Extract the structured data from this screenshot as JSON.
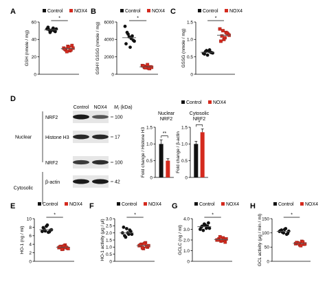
{
  "figure": {
    "colors": {
      "control": "#111111",
      "nox4": "#d42a1e",
      "axis": "#000000",
      "mean": "#555555",
      "blot": "#1a1a1a"
    },
    "legend": {
      "control": "Control",
      "nox4": "NOX4"
    }
  },
  "chart_data": [
    {
      "panel": "A",
      "type": "scatter",
      "ylabel": "GSH (nmole / mg)",
      "ylim": [
        0,
        60
      ],
      "yticks": [
        0,
        20,
        40,
        60
      ],
      "sig": "*",
      "groups": [
        "Control",
        "NOX4"
      ],
      "series": [
        {
          "name": "Control",
          "values": [
            52,
            51,
            50,
            53,
            49,
            54,
            48,
            51,
            50,
            52
          ],
          "mean": 51
        },
        {
          "name": "NOX4",
          "values": [
            30,
            28,
            32,
            27,
            33,
            29,
            26,
            31,
            28,
            30
          ],
          "mean": 29.4
        }
      ]
    },
    {
      "panel": "B",
      "type": "scatter",
      "ylabel": "GSH²/ GSSG (nmole / mg)",
      "ylim": [
        0,
        6000
      ],
      "yticks": [
        0,
        2000,
        4000,
        6000
      ],
      "sig": "*",
      "groups": [
        "Control",
        "NOX4"
      ],
      "series": [
        {
          "name": "Control",
          "values": [
            5500,
            4800,
            4300,
            4100,
            3900,
            3500,
            4600,
            3100,
            4400,
            3800
          ],
          "mean": 4200
        },
        {
          "name": "NOX4",
          "values": [
            1000,
            800,
            900,
            700,
            850,
            950,
            750,
            1100,
            650,
            800
          ],
          "mean": 850
        }
      ]
    },
    {
      "panel": "C",
      "type": "scatter",
      "ylabel": "GSSG (nmole / mg)",
      "ylim": [
        0,
        1.5
      ],
      "yticks": [
        0,
        0.5,
        1.0,
        1.5
      ],
      "ytick_labels": [
        "0",
        "0.5",
        "1.0",
        "1.5"
      ],
      "sig": "*",
      "groups": [
        "Control",
        "NOX4"
      ],
      "series": [
        {
          "name": "Control",
          "values": [
            0.6,
            0.65,
            0.55,
            0.7,
            0.62,
            0.58,
            0.68,
            0.66,
            0.63,
            0.61
          ],
          "mean": 0.63
        },
        {
          "name": "NOX4",
          "values": [
            1.3,
            1.1,
            1.0,
            1.2,
            1.15,
            0.95,
            1.25,
            1.05,
            1.18,
            1.12
          ],
          "mean": 1.12
        }
      ]
    },
    {
      "panel": "D-nuclear",
      "type": "bar",
      "title": "Nuclear NRF2",
      "ylabel": "Fold change / Histone H3",
      "ylim": [
        0,
        1.5
      ],
      "yticks": [
        0,
        0.5,
        1.0,
        1.5
      ],
      "ytick_labels": [
        "0",
        "0.5",
        "1.0",
        "1.5"
      ],
      "sig": "**",
      "categories": [
        "Control",
        "NOX4"
      ],
      "values": [
        1.0,
        0.5
      ],
      "errors": [
        0.12,
        0.06
      ]
    },
    {
      "panel": "D-cytosolic",
      "type": "bar",
      "title": "Cytosolic NRF2",
      "ylabel": "Fold change / β-actin",
      "ylim": [
        0,
        1.5
      ],
      "yticks": [
        0,
        0.5,
        1.0,
        1.5
      ],
      "ytick_labels": [
        "0",
        "0.5",
        "1.0",
        "1.5"
      ],
      "sig": "*",
      "categories": [
        "Control",
        "NOX4"
      ],
      "values": [
        1.0,
        1.35
      ],
      "errors": [
        0.08,
        0.1
      ]
    },
    {
      "panel": "E",
      "type": "scatter",
      "ylabel": "HO-1 (ng / ml)",
      "ylim": [
        0,
        10
      ],
      "yticks": [
        0,
        2,
        4,
        6,
        8,
        10
      ],
      "sig": "*",
      "groups": [
        "Control",
        "NOX4"
      ],
      "series": [
        {
          "name": "Control",
          "values": [
            7.0,
            7.5,
            8.2,
            6.8,
            7.3,
            7.9,
            7.1,
            8.5,
            6.9,
            7.4
          ],
          "mean": 7.4
        },
        {
          "name": "NOX4",
          "values": [
            3.2,
            3.5,
            2.9,
            3.8,
            3.1,
            3.4,
            2.8,
            3.6,
            3.3,
            3.0
          ],
          "mean": 3.3
        }
      ]
    },
    {
      "panel": "F",
      "type": "scatter",
      "ylabel": "HO-1 activity (μg / μl)",
      "ylim": [
        0,
        3.0
      ],
      "yticks": [
        0,
        0.5,
        1.0,
        1.5,
        2.0,
        2.5,
        3.0
      ],
      "ytick_labels": [
        "0",
        "0.5",
        "1.0",
        "1.5",
        "2.0",
        "2.5",
        "3.0"
      ],
      "sig": "*",
      "groups": [
        "Control",
        "NOX4"
      ],
      "series": [
        {
          "name": "Control",
          "values": [
            2.0,
            1.8,
            2.3,
            1.9,
            2.1,
            2.4,
            1.7,
            2.0,
            2.2,
            1.9
          ],
          "mean": 2.0
        },
        {
          "name": "NOX4",
          "values": [
            1.1,
            1.2,
            0.9,
            1.3,
            1.0,
            1.15,
            0.95,
            1.25,
            1.05,
            1.1
          ],
          "mean": 1.1
        }
      ]
    },
    {
      "panel": "G",
      "type": "scatter",
      "ylabel": "GCLC (ng / ml)",
      "ylim": [
        0,
        4.0
      ],
      "yticks": [
        0,
        1.0,
        2.0,
        3.0,
        4.0
      ],
      "ytick_labels": [
        "0",
        "1.0",
        "2.0",
        "3.0",
        "4.0"
      ],
      "sig": "*",
      "groups": [
        "Control",
        "NOX4"
      ],
      "series": [
        {
          "name": "Control",
          "values": [
            3.0,
            3.3,
            3.5,
            3.1,
            3.6,
            3.2,
            2.9,
            3.4,
            3.3,
            3.1
          ],
          "mean": 3.25
        },
        {
          "name": "NOX4",
          "values": [
            2.0,
            2.1,
            1.9,
            2.2,
            1.8,
            2.0,
            2.3,
            1.95,
            2.05,
            2.1
          ],
          "mean": 2.04
        }
      ]
    },
    {
      "panel": "H",
      "type": "scatter",
      "ylabel": "GCL activity (μg / min / ml)",
      "ylim": [
        0,
        150
      ],
      "yticks": [
        0,
        50,
        100,
        150
      ],
      "sig": "*",
      "groups": [
        "Control",
        "NOX4"
      ],
      "series": [
        {
          "name": "Control",
          "values": [
            105,
            110,
            100,
            115,
            98,
            108,
            102,
            112,
            95,
            106
          ],
          "mean": 105
        },
        {
          "name": "NOX4",
          "values": [
            62,
            65,
            58,
            70,
            60,
            66,
            63,
            55,
            68,
            61
          ],
          "mean": 63
        }
      ]
    }
  ],
  "western": {
    "header": {
      "control": "Control",
      "nox4": "NOX4",
      "mw": "M",
      "mw_sub": "r",
      "mw_unit": " (kDa)"
    },
    "sections": [
      {
        "name": "Nuclear"
      },
      {
        "name": "Cytosolic"
      }
    ],
    "blots": [
      {
        "label": "NRF2",
        "kda": "100",
        "intensity": [
          1.0,
          0.55
        ]
      },
      {
        "label": "Histone H3",
        "kda": "17",
        "intensity": [
          0.9,
          0.9
        ]
      },
      {
        "label": "NRF2",
        "kda": "100",
        "intensity": [
          0.75,
          0.85
        ]
      },
      {
        "label": "β-actin",
        "kda": "42",
        "intensity": [
          1.0,
          1.0
        ]
      }
    ]
  }
}
